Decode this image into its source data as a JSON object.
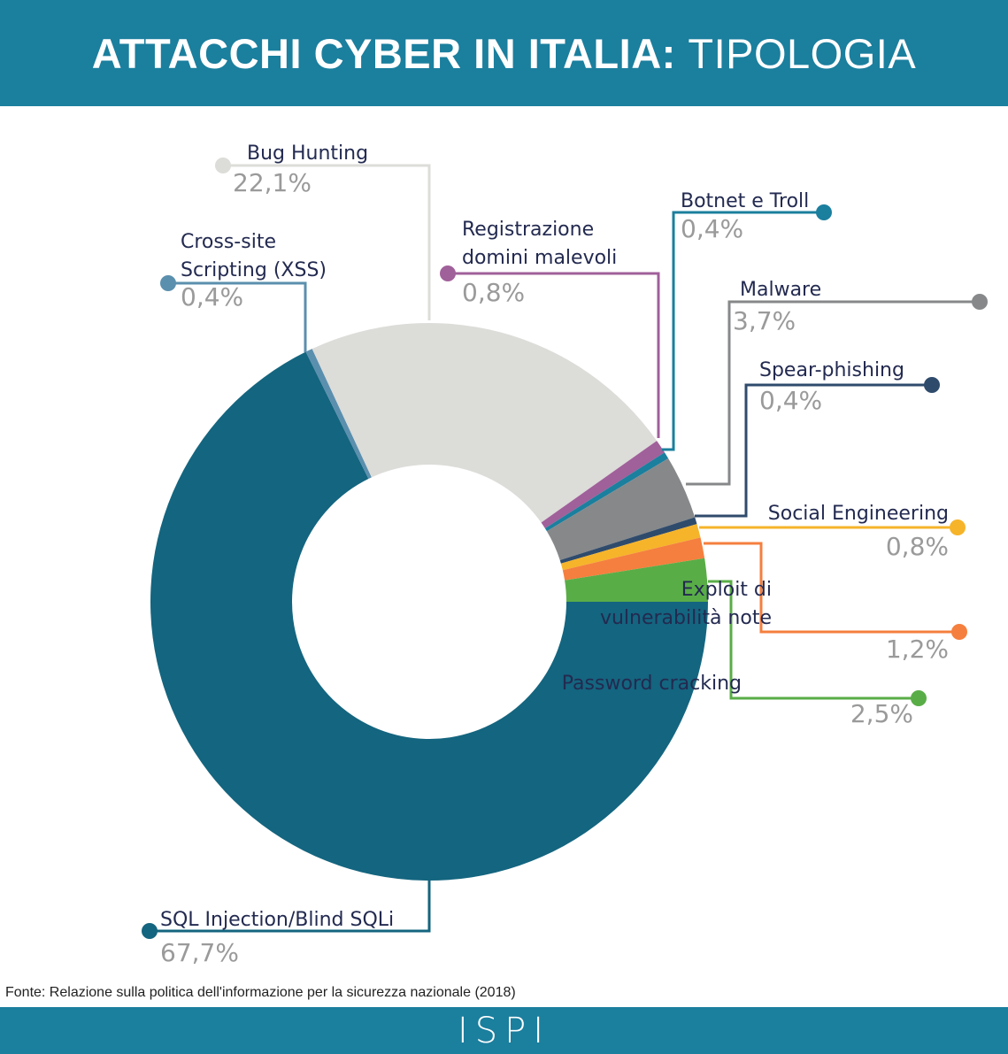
{
  "header": {
    "title_bold": "ATTACCHI CYBER IN ITALIA:",
    "title_regular": "TIPOLOGIA"
  },
  "chart_data": {
    "type": "pie",
    "title": "ATTACCHI CYBER IN ITALIA: TIPOLOGIA",
    "slices": [
      {
        "label": "SQL Injection/Blind SQLi",
        "value": 67.7,
        "display": "67,7%",
        "color": "#14657f"
      },
      {
        "label": "Cross-site Scripting (XSS)",
        "value": 0.4,
        "display": "0,4%",
        "color": "#5b8fae"
      },
      {
        "label": "Bug Hunting",
        "value": 22.1,
        "display": "22,1%",
        "color": "#dcdcd9"
      },
      {
        "label": "Registrazione domini malevoli",
        "value": 0.8,
        "display": "0,8%",
        "color": "#a0609a"
      },
      {
        "label": "Botnet e Troll",
        "value": 0.4,
        "display": "0,4%",
        "color": "#1b7f9e"
      },
      {
        "label": "Malware",
        "value": 3.7,
        "display": "3,7%",
        "color": "#86888a"
      },
      {
        "label": "Spear-phishing",
        "value": 0.4,
        "display": "0,4%",
        "color": "#2f4b6c"
      },
      {
        "label": "Social Engineering",
        "value": 0.8,
        "display": "0,8%",
        "color": "#f6b42a"
      },
      {
        "label": "Exploit di vulnerabilità note",
        "value": 1.2,
        "display": "1,2%",
        "color": "#f57f3e"
      },
      {
        "label": "Password cracking",
        "value": 2.5,
        "display": "2,5%",
        "color": "#59ad47"
      }
    ]
  },
  "source": "Fonte: Relazione sulla politica dell'informazione per la sicurezza nazionale (2018)",
  "footer": {
    "logo": "ISPI"
  }
}
